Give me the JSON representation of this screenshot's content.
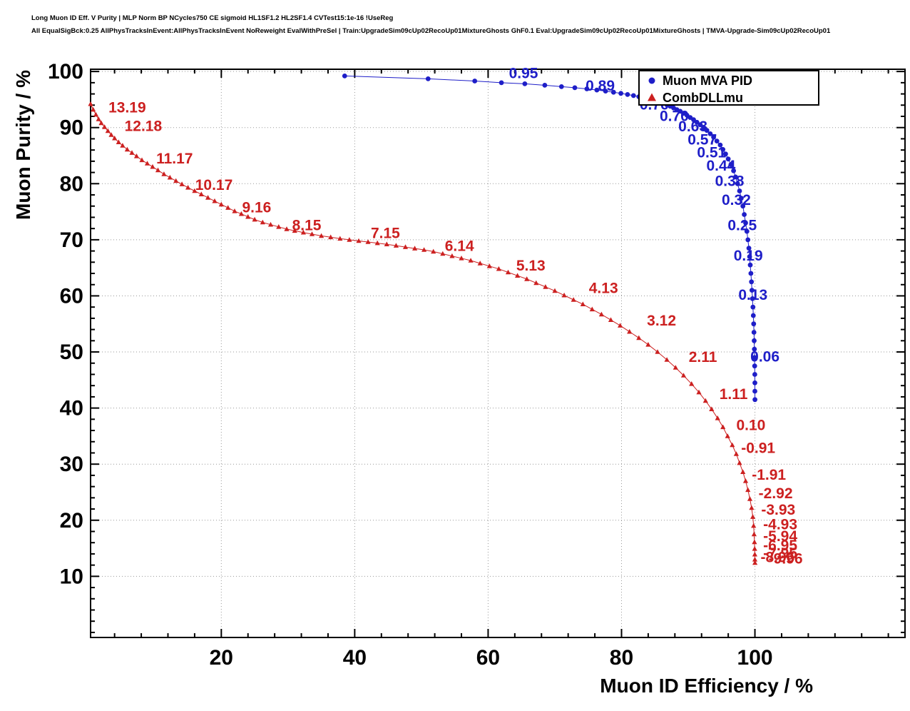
{
  "header": {
    "line1": "Long Muon ID Eff. V Purity | MLP Norm BP NCycles750 CE sigmoid HL1SF1.2 HL2SF1.4 CVTest15:1e-16 !UseReg",
    "line2": "All EqualSigBck:0.25 AllPhysTracksInEvent:AllPhysTracksInEvent NoReweight EvalWithPreSel | Train:UpgradeSim09cUp02RecoUp01MixtureGhosts GhF0.1 Eval:UpgradeSim09cUp02RecoUp01MixtureGhosts | TMVA-Upgrade-Sim09cUp02RecoUp01"
  },
  "chart_data": {
    "type": "line",
    "title": "",
    "xlabel": "Muon ID Efficiency / %",
    "ylabel": "Muon Purity / %",
    "x_range": [
      0.4,
      122.5
    ],
    "y_range": [
      -0.9,
      100.4
    ],
    "x_ticks": [
      20,
      40,
      60,
      80,
      100
    ],
    "y_ticks": [
      10,
      20,
      30,
      40,
      50,
      60,
      70,
      80,
      90,
      100
    ],
    "x_minor_step": 4,
    "y_minor_step": 2,
    "grid": true,
    "legend_position": "top-right",
    "series": [
      {
        "name": "Muon MVA PID",
        "color": "#1e1ec8",
        "marker": "circle",
        "points": [
          [
            38.5,
            99.2
          ],
          [
            51,
            98.7
          ],
          [
            58,
            98.3
          ],
          [
            62,
            98.0
          ],
          [
            65.5,
            97.8
          ],
          [
            68.5,
            97.55
          ],
          [
            71,
            97.3
          ],
          [
            73,
            97.1
          ],
          [
            74.8,
            96.9
          ],
          [
            76.3,
            96.7
          ],
          [
            77.6,
            96.5
          ],
          [
            78.8,
            96.3
          ],
          [
            79.9,
            96.1
          ],
          [
            80.9,
            95.9
          ],
          [
            81.8,
            95.7
          ],
          [
            82.6,
            95.5
          ],
          [
            83.3,
            95.3
          ],
          [
            84.0,
            95.1
          ],
          [
            84.6,
            94.9
          ],
          [
            85.2,
            94.7
          ],
          [
            85.8,
            94.5
          ],
          [
            86.3,
            94.3
          ],
          [
            86.8,
            94.05
          ],
          [
            87.3,
            93.8
          ],
          [
            87.8,
            93.5
          ],
          [
            88.3,
            93.2
          ],
          [
            88.8,
            92.9
          ],
          [
            89.3,
            92.55
          ],
          [
            89.8,
            92.2
          ],
          [
            90.3,
            91.8
          ],
          [
            90.8,
            91.4
          ],
          [
            91.3,
            90.95
          ],
          [
            91.8,
            90.5
          ],
          [
            92.3,
            90.0
          ],
          [
            92.8,
            89.5
          ],
          [
            93.3,
            88.9
          ],
          [
            93.8,
            88.3
          ],
          [
            94.3,
            87.6
          ],
          [
            94.8,
            86.9
          ],
          [
            95.2,
            86.1
          ],
          [
            95.6,
            85.3
          ],
          [
            96.0,
            84.4
          ],
          [
            96.4,
            83.4
          ],
          [
            96.8,
            82.3
          ],
          [
            97.1,
            81.2
          ],
          [
            97.4,
            80.0
          ],
          [
            97.7,
            78.7
          ],
          [
            97.95,
            77.4
          ],
          [
            98.2,
            76.0
          ],
          [
            98.4,
            74.5
          ],
          [
            98.6,
            73.0
          ],
          [
            98.8,
            71.5
          ],
          [
            98.95,
            70.0
          ],
          [
            99.1,
            68.5
          ],
          [
            99.2,
            67.0
          ],
          [
            99.3,
            65.5
          ],
          [
            99.4,
            64.0
          ],
          [
            99.48,
            62.5
          ],
          [
            99.56,
            61.0
          ],
          [
            99.63,
            59.5
          ],
          [
            99.7,
            58.0
          ],
          [
            99.76,
            56.5
          ],
          [
            99.81,
            55.0
          ],
          [
            99.85,
            53.5
          ],
          [
            99.89,
            52.0
          ],
          [
            99.92,
            50.5
          ],
          [
            99.945,
            49.0
          ],
          [
            99.965,
            47.5
          ],
          [
            99.98,
            46.0
          ],
          [
            99.99,
            44.5
          ],
          [
            99.995,
            43.0
          ],
          [
            100.0,
            41.5
          ]
        ]
      },
      {
        "name": "CombDLLmu",
        "color": "#cc2020",
        "marker": "triangle",
        "points": [
          [
            0.4,
            94.2
          ],
          [
            0.8,
            93.2
          ],
          [
            1.2,
            92.3
          ],
          [
            1.6,
            91.5
          ],
          [
            2.0,
            90.8
          ],
          [
            2.5,
            90.1
          ],
          [
            3.0,
            89.4
          ],
          [
            3.5,
            88.7
          ],
          [
            4.0,
            88.1
          ],
          [
            4.6,
            87.4
          ],
          [
            5.2,
            86.8
          ],
          [
            5.9,
            86.1
          ],
          [
            6.6,
            85.5
          ],
          [
            7.3,
            84.9
          ],
          [
            8.1,
            84.2
          ],
          [
            8.9,
            83.6
          ],
          [
            9.7,
            83.0
          ],
          [
            10.5,
            82.4
          ],
          [
            11.4,
            81.7
          ],
          [
            12.3,
            81.1
          ],
          [
            13.2,
            80.5
          ],
          [
            14.1,
            79.9
          ],
          [
            15.0,
            79.3
          ],
          [
            16.0,
            78.7
          ],
          [
            17.0,
            78.1
          ],
          [
            18.0,
            77.5
          ],
          [
            19.0,
            76.9
          ],
          [
            20.0,
            76.3
          ],
          [
            21.0,
            75.7
          ],
          [
            22.0,
            75.1
          ],
          [
            23.0,
            74.6
          ],
          [
            24.0,
            74.1
          ],
          [
            25.0,
            73.6
          ],
          [
            26.2,
            73.1
          ],
          [
            27.4,
            72.7
          ],
          [
            28.6,
            72.3
          ],
          [
            29.8,
            71.9
          ],
          [
            31.0,
            71.6
          ],
          [
            32.3,
            71.3
          ],
          [
            33.6,
            71.0
          ],
          [
            35.0,
            70.7
          ],
          [
            36.4,
            70.45
          ],
          [
            37.8,
            70.2
          ],
          [
            39.2,
            70.0
          ],
          [
            40.6,
            69.8
          ],
          [
            42.0,
            69.6
          ],
          [
            43.4,
            69.4
          ],
          [
            44.8,
            69.2
          ],
          [
            46.2,
            68.95
          ],
          [
            47.6,
            68.7
          ],
          [
            49.0,
            68.45
          ],
          [
            50.4,
            68.2
          ],
          [
            51.8,
            67.9
          ],
          [
            53.2,
            67.5
          ],
          [
            54.6,
            67.1
          ],
          [
            56.0,
            66.7
          ],
          [
            57.4,
            66.3
          ],
          [
            58.8,
            65.8
          ],
          [
            60.2,
            65.3
          ],
          [
            61.6,
            64.8
          ],
          [
            63.0,
            64.2
          ],
          [
            64.4,
            63.6
          ],
          [
            65.8,
            63.0
          ],
          [
            67.2,
            62.3
          ],
          [
            68.6,
            61.6
          ],
          [
            70.0,
            60.9
          ],
          [
            71.4,
            60.1
          ],
          [
            72.8,
            59.3
          ],
          [
            74.2,
            58.5
          ],
          [
            75.6,
            57.6
          ],
          [
            77.0,
            56.7
          ],
          [
            78.4,
            55.7
          ],
          [
            79.8,
            54.7
          ],
          [
            81.2,
            53.6
          ],
          [
            82.6,
            52.5
          ],
          [
            84.0,
            51.3
          ],
          [
            85.4,
            50.0
          ],
          [
            86.8,
            48.6
          ],
          [
            88.1,
            47.2
          ],
          [
            89.3,
            45.8
          ],
          [
            90.5,
            44.3
          ],
          [
            91.6,
            42.8
          ],
          [
            92.6,
            41.3
          ],
          [
            93.5,
            39.8
          ],
          [
            94.4,
            38.2
          ],
          [
            95.2,
            36.6
          ],
          [
            95.9,
            35.0
          ],
          [
            96.6,
            33.4
          ],
          [
            97.2,
            31.8
          ],
          [
            97.7,
            30.2
          ],
          [
            98.2,
            28.6
          ],
          [
            98.6,
            27.0
          ],
          [
            98.95,
            25.4
          ],
          [
            99.25,
            23.8
          ],
          [
            99.5,
            22.2
          ],
          [
            99.68,
            20.6
          ],
          [
            99.8,
            19.0
          ],
          [
            99.88,
            17.5
          ],
          [
            99.93,
            16.1
          ],
          [
            99.96,
            14.9
          ],
          [
            99.98,
            13.9
          ],
          [
            99.99,
            13.0
          ],
          [
            100.0,
            12.4
          ]
        ]
      }
    ],
    "annotations": [
      {
        "series": 0,
        "text": "0.95",
        "x": 65.3,
        "y": 98.8
      },
      {
        "series": 0,
        "text": "0.89",
        "x": 76.8,
        "y": 96.6
      },
      {
        "series": 0,
        "text": "0.76",
        "x": 84.9,
        "y": 93.2
      },
      {
        "series": 0,
        "text": "0.70",
        "x": 87.9,
        "y": 91.2
      },
      {
        "series": 0,
        "text": "0.63",
        "x": 90.7,
        "y": 89.3
      },
      {
        "series": 0,
        "text": "0.57",
        "x": 92.1,
        "y": 87.0
      },
      {
        "series": 0,
        "text": "0.51",
        "x": 93.5,
        "y": 84.7
      },
      {
        "series": 0,
        "text": "0.44",
        "x": 94.9,
        "y": 82.3
      },
      {
        "series": 0,
        "text": "0.38",
        "x": 96.2,
        "y": 79.6
      },
      {
        "series": 0,
        "text": "0.32",
        "x": 97.2,
        "y": 76.2
      },
      {
        "series": 0,
        "text": "0.25",
        "x": 98.1,
        "y": 71.7
      },
      {
        "series": 0,
        "text": "0.19",
        "x": 99.0,
        "y": 66.3
      },
      {
        "series": 0,
        "text": "0.13",
        "x": 99.7,
        "y": 59.3
      },
      {
        "series": 0,
        "text": "0.06",
        "x": 101.5,
        "y": 48.3
      },
      {
        "series": 1,
        "text": "13.19",
        "x": 5.9,
        "y": 92.7
      },
      {
        "series": 1,
        "text": "12.18",
        "x": 8.3,
        "y": 89.4
      },
      {
        "series": 1,
        "text": "11.17",
        "x": 13.0,
        "y": 83.6
      },
      {
        "series": 1,
        "text": "10.17",
        "x": 18.9,
        "y": 78.9
      },
      {
        "series": 1,
        "text": "9.16",
        "x": 25.3,
        "y": 74.9
      },
      {
        "series": 1,
        "text": "8.15",
        "x": 32.8,
        "y": 71.7
      },
      {
        "series": 1,
        "text": "7.15",
        "x": 44.6,
        "y": 70.3
      },
      {
        "series": 1,
        "text": "6.14",
        "x": 55.7,
        "y": 68.0
      },
      {
        "series": 1,
        "text": "5.13",
        "x": 66.4,
        "y": 64.5
      },
      {
        "series": 1,
        "text": "4.13",
        "x": 77.3,
        "y": 60.5
      },
      {
        "series": 1,
        "text": "3.12",
        "x": 86.0,
        "y": 54.7
      },
      {
        "series": 1,
        "text": "2.11",
        "x": 92.2,
        "y": 48.2
      },
      {
        "series": 1,
        "text": "1.11",
        "x": 96.8,
        "y": 41.6
      },
      {
        "series": 1,
        "text": "0.10",
        "x": 99.4,
        "y": 36.1
      },
      {
        "series": 1,
        "text": "-0.91",
        "x": 100.5,
        "y": 32.0
      },
      {
        "series": 1,
        "text": "-1.91",
        "x": 102.1,
        "y": 27.2
      },
      {
        "series": 1,
        "text": "-2.92",
        "x": 103.1,
        "y": 23.9
      },
      {
        "series": 1,
        "text": "-3.93",
        "x": 103.5,
        "y": 21.0
      },
      {
        "series": 1,
        "text": "-4.93",
        "x": 103.8,
        "y": 18.4
      },
      {
        "series": 1,
        "text": "-5.94",
        "x": 103.8,
        "y": 16.3
      },
      {
        "series": 1,
        "text": "-6.95",
        "x": 103.8,
        "y": 14.6
      },
      {
        "series": 1,
        "text": "-7.95",
        "x": 103.8,
        "y": 13.2
      },
      {
        "series": 1,
        "text": "-8.96",
        "x": 103.4,
        "y": 12.5
      },
      {
        "series": 1,
        "text": "-9.96",
        "x": 104.6,
        "y": 12.3
      }
    ]
  },
  "colors": {
    "blue": "#1e1ec8",
    "red": "#cc2020",
    "grid": "#999999",
    "frame": "#000000",
    "background": "#ffffff"
  }
}
